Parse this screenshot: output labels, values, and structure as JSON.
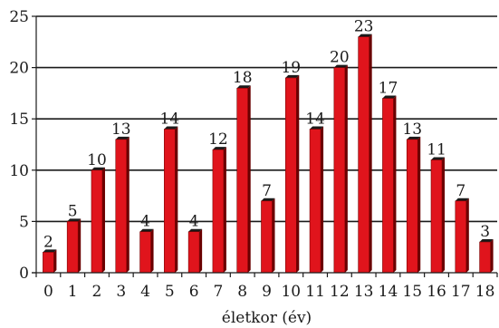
{
  "chart_data": {
    "type": "bar",
    "categories": [
      "0",
      "1",
      "2",
      "3",
      "4",
      "5",
      "6",
      "7",
      "8",
      "9",
      "10",
      "11",
      "12",
      "13",
      "14",
      "15",
      "16",
      "17",
      "18"
    ],
    "values": [
      2,
      5,
      10,
      13,
      4,
      14,
      4,
      12,
      18,
      7,
      19,
      14,
      20,
      23,
      17,
      13,
      11,
      7,
      3
    ],
    "yticks": [
      "0",
      "5",
      "10",
      "15",
      "20",
      "25"
    ],
    "ylim": [
      0,
      25
    ],
    "xlabel": "életkor (év)",
    "ylabel": "",
    "title": "",
    "grid": true,
    "bar_color": "#e0141c",
    "bar_side_color": "#6a0000",
    "bar_top_color": "#1a1a1a",
    "data_labels": true
  }
}
